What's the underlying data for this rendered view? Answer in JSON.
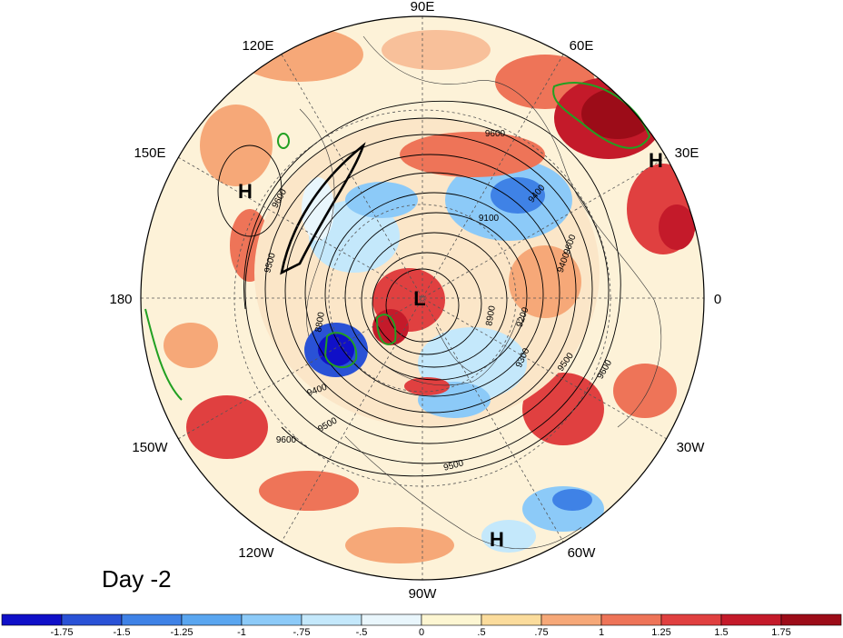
{
  "panel_label": "Day -2",
  "longitude_labels": [
    "90E",
    "120E",
    "60E",
    "150E",
    "30E",
    "180",
    "0",
    "150W",
    "30W",
    "120W",
    "60W",
    "90W"
  ],
  "contour_labels": [
    "9600",
    "9600",
    "9500",
    "9400",
    "9100",
    "9200",
    "9300",
    "9500",
    "9600",
    "9600",
    "9500",
    "9400",
    "8800",
    "8900",
    "9600",
    "9500",
    "9400"
  ],
  "pressure_centers": [
    "H",
    "H",
    "L",
    "H"
  ],
  "colorbar": {
    "ticks": [
      "-1.75",
      "-1.5",
      "-1.25",
      "-1",
      "-.75",
      "-.5",
      "0",
      ".5",
      ".75",
      "1",
      "1.25",
      "1.5",
      "1.75"
    ],
    "colors": [
      "#1010c8",
      "#2a52d6",
      "#3f82e6",
      "#5aa6f0",
      "#8ccaf8",
      "#c4e8fb",
      "#e9f6fc",
      "#fdf6d2",
      "#fbdc9c",
      "#f6a878",
      "#ee7458",
      "#e04040",
      "#c41a2a",
      "#9c0c18"
    ]
  }
}
